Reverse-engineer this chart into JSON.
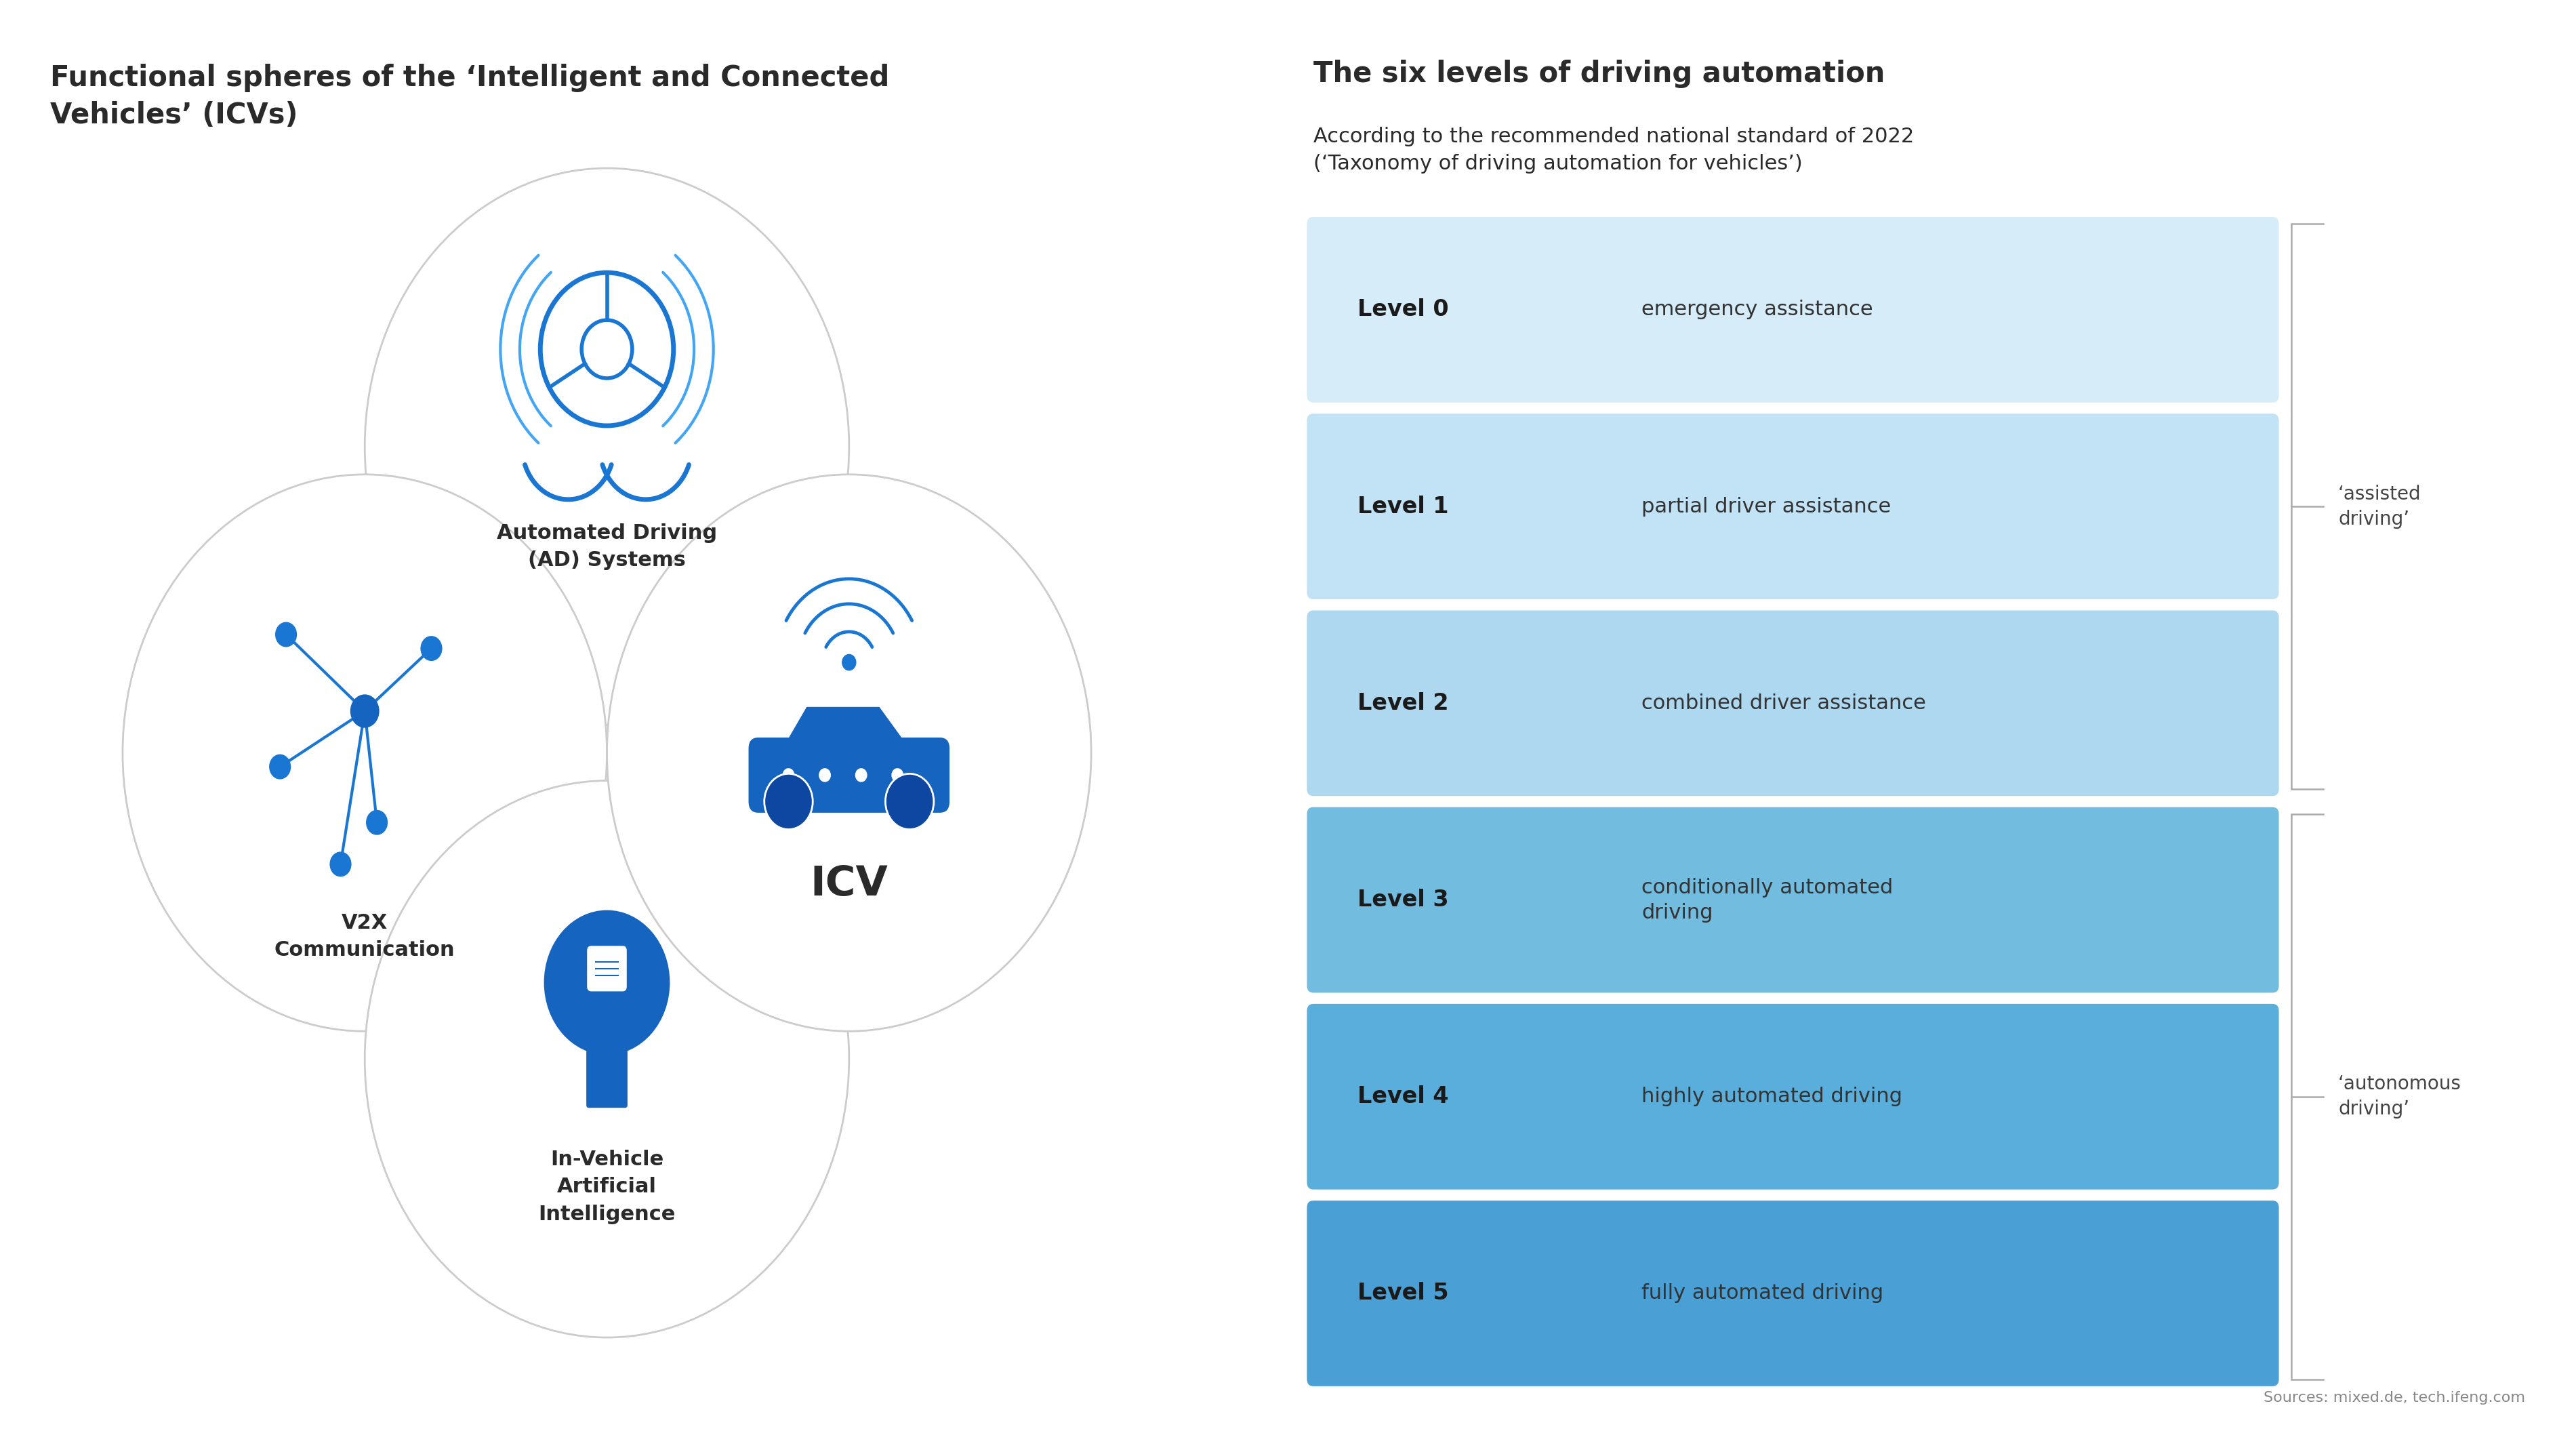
{
  "title_left": "Functional spheres of the ‘Intelligent and Connected\nVehicles’ (ICVs)",
  "title_right": "The six levels of driving automation",
  "subtitle_right": "According to the recommended national standard of 2022\n(‘Taxonomy of driving automation for vehicles’)",
  "source": "Sources: mixed.de, tech.ifeng.com",
  "bg_color": "#ffffff",
  "text_dark": "#2a2a2a",
  "text_medium": "#444444",
  "levels": [
    {
      "label": "Level 0",
      "desc": "emergency assistance",
      "color": "#d6ecf8"
    },
    {
      "label": "Level 1",
      "desc": "partial driver assistance",
      "color": "#c2e2f5"
    },
    {
      "label": "Level 2",
      "desc": "combined driver assistance",
      "color": "#add8f0"
    },
    {
      "label": "Level 3",
      "desc": "conditionally automated\ndriving",
      "color": "#72bce0"
    },
    {
      "label": "Level 4",
      "desc": "highly automated driving",
      "color": "#5aaedb"
    },
    {
      "label": "Level 5",
      "desc": "fully automated driving",
      "color": "#4aa0d5"
    }
  ],
  "bracket_groups": [
    {
      "start": 0,
      "end": 2,
      "label": "‘assisted\ndriving’"
    },
    {
      "start": 3,
      "end": 5,
      "label": "‘autonomous\ndriving’"
    }
  ],
  "icon_color_dark": "#1565c0",
  "icon_color_mid": "#1976d2",
  "icon_color_light": "#42a5f5",
  "circle_edge": "#cccccc",
  "circle_face": "#ffffff"
}
